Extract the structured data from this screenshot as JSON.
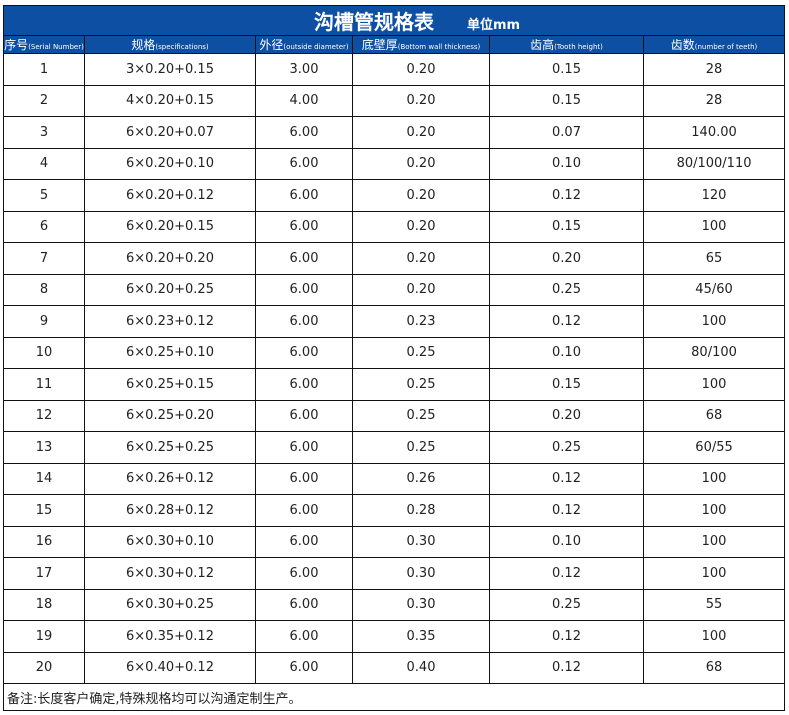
{
  "title": "沟槽管规格表",
  "unit": "单位mm",
  "colors": {
    "header_bg": "#0d4fa3",
    "header_text": "#ffffff"
  },
  "columns": [
    {
      "cn": "序号",
      "en": "(Serial Number)"
    },
    {
      "cn": "规格",
      "en": "(specifications)"
    },
    {
      "cn": "外径",
      "en": "(outside diameter)"
    },
    {
      "cn": "底壁厚",
      "en": "(Bottom wall thickness)"
    },
    {
      "cn": "齿高",
      "en": "(Tooth height)"
    },
    {
      "cn": "齿数",
      "en": "(number of teeth)"
    }
  ],
  "rows": [
    [
      "1",
      "3×0.20+0.15",
      "3.00",
      "0.20",
      "0.15",
      "28"
    ],
    [
      "2",
      "4×0.20+0.15",
      "4.00",
      "0.20",
      "0.15",
      "28"
    ],
    [
      "3",
      "6×0.20+0.07",
      "6.00",
      "0.20",
      "0.07",
      "140.00"
    ],
    [
      "4",
      "6×0.20+0.10",
      "6.00",
      "0.20",
      "0.10",
      "80/100/110"
    ],
    [
      "5",
      "6×0.20+0.12",
      "6.00",
      "0.20",
      "0.12",
      "120"
    ],
    [
      "6",
      "6×0.20+0.15",
      "6.00",
      "0.20",
      "0.15",
      "100"
    ],
    [
      "7",
      "6×0.20+0.20",
      "6.00",
      "0.20",
      "0.20",
      "65"
    ],
    [
      "8",
      "6×0.20+0.25",
      "6.00",
      "0.20",
      "0.25",
      "45/60"
    ],
    [
      "9",
      "6×0.23+0.12",
      "6.00",
      "0.23",
      "0.12",
      "100"
    ],
    [
      "10",
      "6×0.25+0.10",
      "6.00",
      "0.25",
      "0.10",
      "80/100"
    ],
    [
      "11",
      "6×0.25+0.15",
      "6.00",
      "0.25",
      "0.15",
      "100"
    ],
    [
      "12",
      "6×0.25+0.20",
      "6.00",
      "0.25",
      "0.20",
      "68"
    ],
    [
      "13",
      "6×0.25+0.25",
      "6.00",
      "0.25",
      "0.25",
      "60/55"
    ],
    [
      "14",
      "6×0.26+0.12",
      "6.00",
      "0.26",
      "0.12",
      "100"
    ],
    [
      "15",
      "6×0.28+0.12",
      "6.00",
      "0.28",
      "0.12",
      "100"
    ],
    [
      "16",
      "6×0.30+0.10",
      "6.00",
      "0.30",
      "0.10",
      "100"
    ],
    [
      "17",
      "6×0.30+0.12",
      "6.00",
      "0.30",
      "0.12",
      "100"
    ],
    [
      "18",
      "6×0.30+0.25",
      "6.00",
      "0.30",
      "0.25",
      "55"
    ],
    [
      "19",
      "6×0.35+0.12",
      "6.00",
      "0.35",
      "0.12",
      "100"
    ],
    [
      "20",
      "6×0.40+0.12",
      "6.00",
      "0.40",
      "0.12",
      "68"
    ]
  ],
  "note": "备注:长度客户确定,特殊规格均可以沟通定制生产。"
}
